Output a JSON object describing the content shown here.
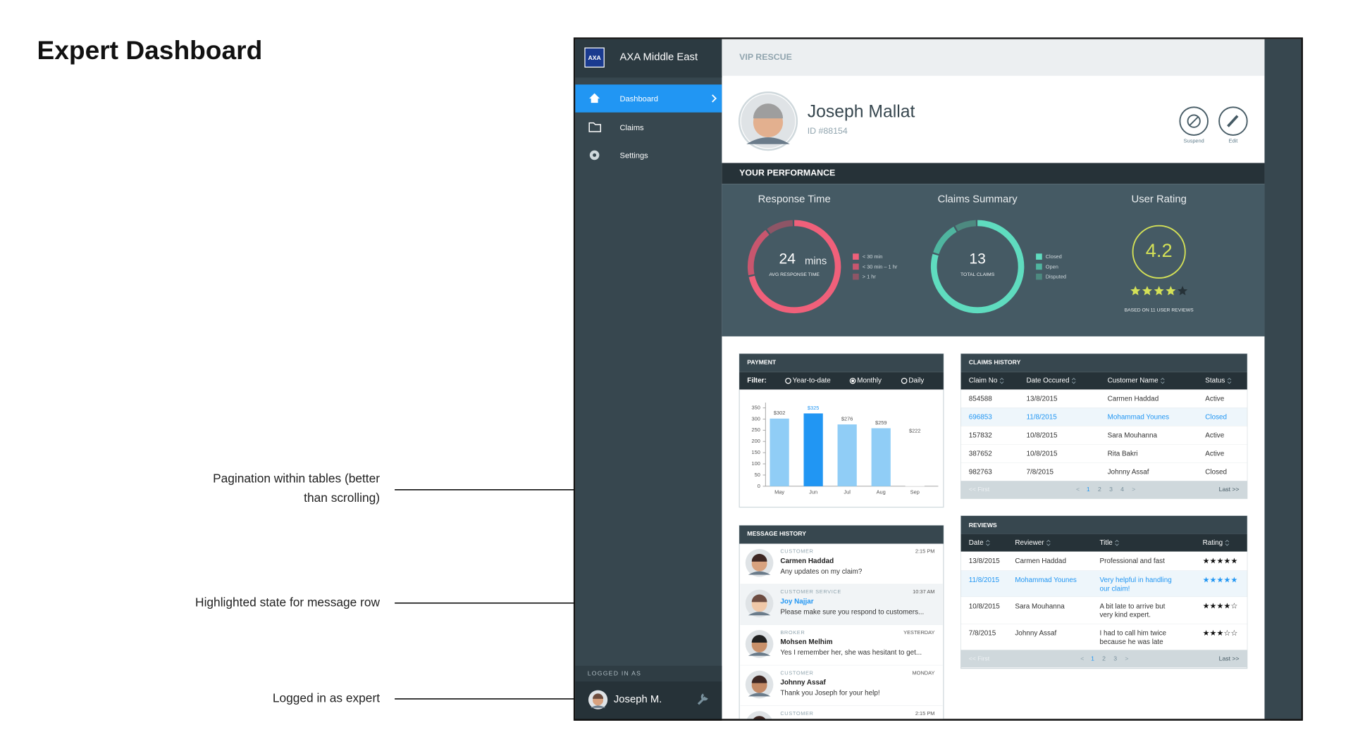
{
  "page_title": "Expert Dashboard",
  "annotations": [
    [
      "Pagination within tables (better",
      "than scrolling)"
    ],
    [
      "Highlighted state for message row"
    ],
    [
      "Logged in as expert"
    ]
  ],
  "sidebar": {
    "logo": "AXA",
    "brand": "AXA Middle East",
    "nav": [
      "Dashboard",
      "Claims",
      "Settings"
    ],
    "active_nav": 0,
    "logged_in_label": "LOGGED IN AS",
    "user": "Joseph M."
  },
  "header": {
    "section": "VIP RESCUE"
  },
  "profile": {
    "name": "Joseph Mallat",
    "id": "ID #88154",
    "actions": [
      "Suspend",
      "Edit"
    ]
  },
  "performance": {
    "title": "YOUR PERFORMANCE",
    "response": {
      "title": "Response Time",
      "value": "24",
      "unit": "mins",
      "caption": "AVG RESPONSE TIME",
      "legend": [
        "< 30 min",
        "< 30 min – 1 hr",
        "> 1 hr"
      ],
      "colors": [
        "#f0607a",
        "#c8566e",
        "#8e5566"
      ]
    },
    "claims": {
      "title": "Claims Summary",
      "value": "13",
      "caption": "TOTAL CLAIMS",
      "legend": [
        "Closed",
        "Open",
        "Disputed"
      ],
      "colors": [
        "#5fdcbf",
        "#4fb59f",
        "#4d8a80"
      ]
    },
    "rating": {
      "title": "User Rating",
      "value": "4.2",
      "caption": "BASED ON 11 USER REVIEWS",
      "color": "#d4e157"
    }
  },
  "payment": {
    "title": "PAYMENT",
    "filter_label": "Filter:",
    "filters": [
      "Year-to-date",
      "Monthly",
      "Daily"
    ],
    "selected_filter": 1,
    "chart": {
      "type": "bar",
      "categories": [
        "May",
        "Jun",
        "Jul",
        "Aug",
        "Sep"
      ],
      "values": [
        302,
        325,
        276,
        259,
        222
      ],
      "value_labels": [
        "$302",
        "$325",
        "$276",
        "$259",
        "$222"
      ],
      "value_label_colors": [
        "#555",
        "#2196f3",
        "#555",
        "#555",
        "#555"
      ],
      "bar_colors": [
        "#90cdf6",
        "#2196f3",
        "#90cdf6",
        "#90cdf6",
        "#ffffff"
      ],
      "ylim": [
        0,
        350
      ],
      "yticks": [
        0,
        50,
        100,
        150,
        200,
        250,
        300,
        350
      ]
    }
  },
  "claims_history": {
    "title": "CLAIMS HISTORY",
    "columns": [
      "Claim No",
      "Date Occured",
      "Customer Name",
      "Status"
    ],
    "rows": [
      [
        "854588",
        "13/8/2015",
        "Carmen Haddad",
        "Active"
      ],
      [
        "696853",
        "11/8/2015",
        "Mohammad Younes",
        "Closed"
      ],
      [
        "157832",
        "10/8/2015",
        "Sara Mouhanna",
        "Active"
      ],
      [
        "387652",
        "10/8/2015",
        "Rita Bakri",
        "Active"
      ],
      [
        "982763",
        "7/8/2015",
        "Johnny Assaf",
        "Closed"
      ]
    ],
    "highlight_row": 1,
    "pagination": {
      "first": "<< First",
      "prev": "<",
      "pages": [
        "1",
        "2",
        "3",
        "4"
      ],
      "next": ">",
      "last": "Last >>"
    }
  },
  "reviews": {
    "title": "REVIEWS",
    "columns": [
      "Date",
      "Reviewer",
      "Title",
      "Rating"
    ],
    "rows": [
      {
        "date": "13/8/2015",
        "reviewer": "Carmen Haddad",
        "title": [
          "Professional and fast"
        ],
        "rating": "★★★★★"
      },
      {
        "date": "11/8/2015",
        "reviewer": "Mohammad Younes",
        "title": [
          "Very helpful in handling",
          "our claim!"
        ],
        "rating": "★★★★★"
      },
      {
        "date": "10/8/2015",
        "reviewer": "Sara Mouhanna",
        "title": [
          "A bit late to arrive but",
          "very kind expert."
        ],
        "rating": "★★★★☆"
      },
      {
        "date": "7/8/2015",
        "reviewer": "Johnny Assaf",
        "title": [
          "I had to call him twice",
          "because he was late"
        ],
        "rating": "★★★☆☆"
      }
    ],
    "highlight_row": 1,
    "pagination": {
      "first": "<< First",
      "prev": "<",
      "pages": [
        "1",
        "2",
        "3"
      ],
      "next": ">",
      "last": "Last >>"
    }
  },
  "messages": {
    "title": "MESSAGE HISTORY",
    "highlight_item": 1,
    "items": [
      {
        "role": "CUSTOMER",
        "name": "Carmen Haddad",
        "text": "Any updates on my claim?",
        "time": "2:15 PM"
      },
      {
        "role": "CUSTOMER SERVICE",
        "name": "Joy Najjar",
        "text": "Please make sure you respond to customers...",
        "time": "10:37 AM"
      },
      {
        "role": "BROKER",
        "name": "Mohsen Melhim",
        "text": "Yes I remember her, she was hesitant to get...",
        "time": "YESTERDAY"
      },
      {
        "role": "CUSTOMER",
        "name": "Johnny Assaf",
        "text": "Thank you Joseph for your help!",
        "time": "MONDAY"
      },
      {
        "role": "CUSTOMER",
        "time": "2:15 PM"
      }
    ]
  }
}
